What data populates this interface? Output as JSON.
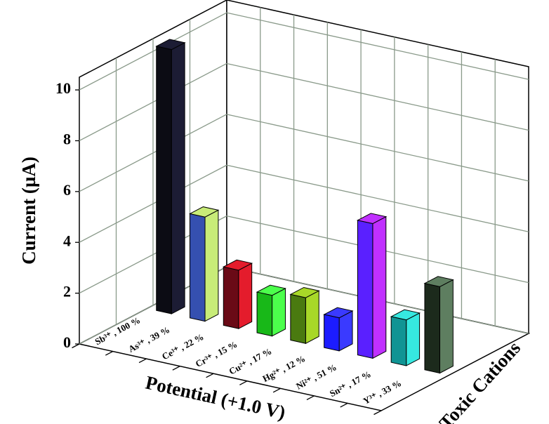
{
  "chart_data": {
    "type": "bar3d",
    "y_label": "Current (µA)",
    "x_label": "Potential (+1.0 V)",
    "z_label": "Toxic Cations",
    "categories": [
      "Sb³⁺ , 100 %",
      "As³⁺ , 39 %",
      "Ce³⁺ , 22 %",
      "Cr³⁺ , 15 %",
      "Cu²⁺ , 17 %",
      "Hg²⁺ , 12 %",
      "Ni²⁺ , 51 %",
      "Sn²⁺ , 17 %",
      "Y³⁺ , 33 %"
    ],
    "values": [
      10.4,
      4.1,
      2.3,
      1.6,
      1.8,
      1.3,
      5.3,
      1.8,
      3.4
    ],
    "colors": [
      "#0c0c14",
      "#3550b0",
      "#6a0a16",
      "#18b818",
      "#4a7a10",
      "#1c1cff",
      "#5a20ff",
      "#109494",
      "#1c2a1c"
    ],
    "side_colors": [
      "#1c1c34",
      "#c8ec78",
      "#e41c2c",
      "#4cff4c",
      "#a8d828",
      "#3a3aff",
      "#c030ff",
      "#36e8e0",
      "#5e7e60"
    ],
    "ylim": [
      0,
      10.5
    ],
    "yticks": [
      0,
      2,
      4,
      6,
      8,
      10
    ],
    "grid": true
  }
}
